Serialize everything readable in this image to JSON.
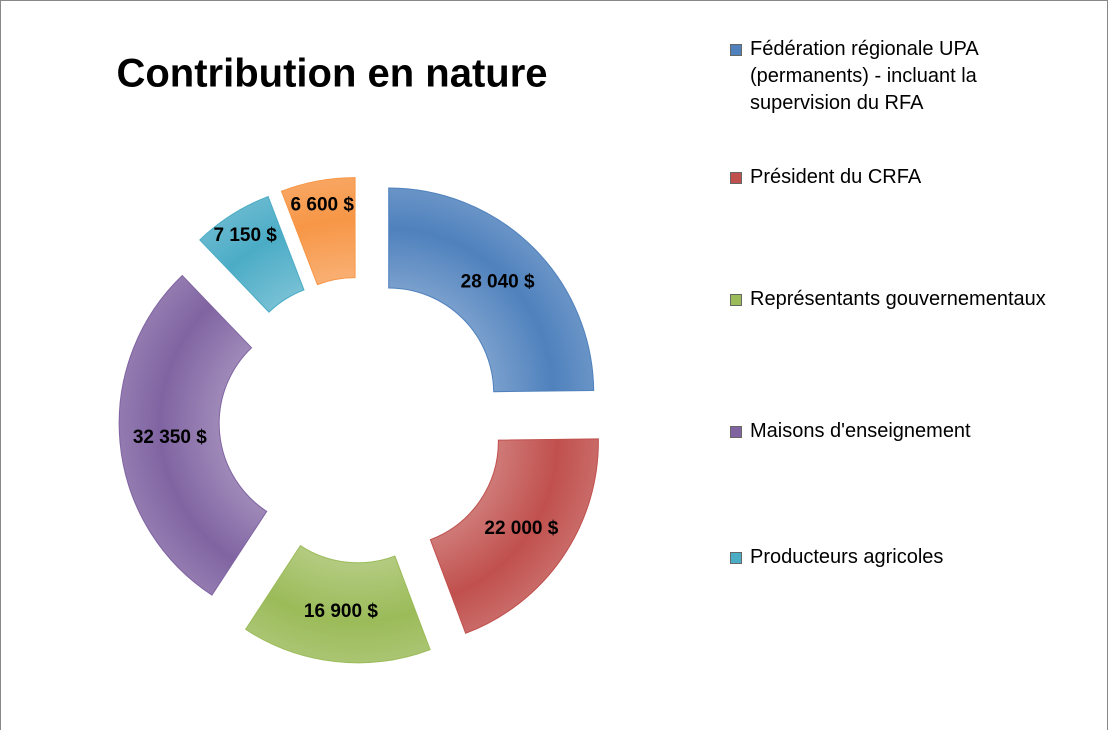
{
  "chart_data": {
    "type": "donut",
    "title": "Contribution en nature",
    "categories": [
      "Fédération régionale UPA (permanents) - incluant la supervision du RFA",
      "Président du CRFA",
      "Représentants gouvernementaux",
      "Maisons d'enseignement",
      "Producteurs agricoles",
      null
    ],
    "values": [
      28040,
      22000,
      16900,
      32350,
      7150,
      6600
    ],
    "value_labels": [
      "28 040 $",
      "22 000 $",
      "16 900 $",
      "32 350 $",
      "7 150 $",
      "6 600 $"
    ],
    "colors": [
      "#4f81bd",
      "#c0504d",
      "#9bbb59",
      "#8064a2",
      "#4bacc6",
      "#f79646"
    ],
    "legend": "right"
  }
}
